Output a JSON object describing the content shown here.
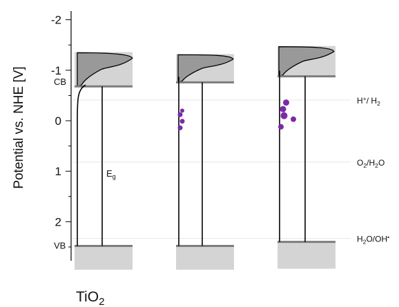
{
  "chart_data": {
    "type": "diagram",
    "ylabel": "Potential vs. NHE [V]",
    "y_axis": {
      "range": [
        -2.0,
        2.75
      ],
      "inverted": true,
      "ticks": [
        -2,
        -1,
        0,
        1,
        2
      ],
      "tick_labels": [
        "-2",
        "-1",
        "0",
        "1",
        "2"
      ]
    },
    "band_labels": {
      "cb": "CB",
      "vb": "VB",
      "gap": "E",
      "gap_sub": "g"
    },
    "material_label": {
      "main": "TiO",
      "sub": "2"
    },
    "reference_levels": [
      {
        "id": "h2",
        "potential": -0.41,
        "parts": [
          {
            "t": "H"
          },
          {
            "t": "+",
            "s": "sup"
          },
          {
            "t": "/ H"
          },
          {
            "t": "2",
            "s": "sub"
          }
        ]
      },
      {
        "id": "o2",
        "potential": 0.82,
        "parts": [
          {
            "t": "O"
          },
          {
            "t": "2",
            "s": "sub"
          },
          {
            "t": "/H"
          },
          {
            "t": "2",
            "s": "sub"
          },
          {
            "t": "O"
          }
        ]
      },
      {
        "id": "oh",
        "potential": 2.33,
        "parts": [
          {
            "t": "H"
          },
          {
            "t": "2",
            "s": "sub"
          },
          {
            "t": "O/OH"
          },
          {
            "t": "•",
            "s": "sup"
          }
        ]
      }
    ],
    "columns": [
      {
        "id": "tio2",
        "cb_edge": -0.68,
        "vb_edge": 2.48,
        "cb_box_top": -1.36,
        "vb_box_bottom": 2.95,
        "particles": []
      },
      {
        "id": "loaded-low",
        "cb_edge": -0.76,
        "vb_edge": 2.48,
        "cb_box_top": -1.32,
        "vb_box_bottom": 2.95,
        "particles": [
          {
            "dv": -0.9,
            "sz": 3.5
          },
          {
            "dv": -0.77,
            "sz": 3.5
          },
          {
            "dv": -0.64,
            "sz": 3.5
          },
          {
            "dv": -0.56,
            "sz": 3
          }
        ]
      },
      {
        "id": "loaded-high",
        "cb_edge": -0.88,
        "vb_edge": 2.4,
        "cb_box_top": -1.48,
        "vb_box_bottom": 2.93,
        "particles": [
          {
            "dv": -1.0,
            "sz": 4
          },
          {
            "dv": -0.78,
            "sz": 5
          },
          {
            "dv": -0.65,
            "sz": 4.5
          },
          {
            "dv": -0.52,
            "sz": 4.5
          },
          {
            "dv": -0.85,
            "sz": 4
          }
        ]
      }
    ],
    "colors": {
      "band_box": "#d4d4d4",
      "band_edge": "#7d7d7d",
      "dos_fill": "#8e8e8e",
      "line": "#000000",
      "ref_line": "#e6e6e6",
      "particle": "#7a2aa8"
    }
  }
}
